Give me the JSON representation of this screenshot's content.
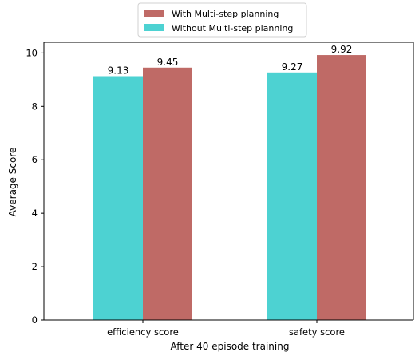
{
  "chart_data": {
    "type": "bar",
    "categories": [
      "efficiency score",
      "safety score"
    ],
    "series": [
      {
        "name": "Without Multi-step planning",
        "values": [
          9.13,
          9.27
        ],
        "color": "#4dd2d2"
      },
      {
        "name": "With Multi-step planning",
        "values": [
          9.45,
          9.92
        ],
        "color": "#bf6a66"
      }
    ],
    "data_labels": [
      [
        "9.13",
        "9.27"
      ],
      [
        "9.45",
        "9.92"
      ]
    ],
    "legend_order": [
      1,
      0
    ],
    "legend_placement": "top-center (above plot)",
    "xlabel": "After 40 episode training",
    "ylabel": "Average Score",
    "ylim": [
      0,
      10.4
    ],
    "yticks": [
      0,
      2,
      4,
      6,
      8,
      10
    ],
    "grid": false
  }
}
